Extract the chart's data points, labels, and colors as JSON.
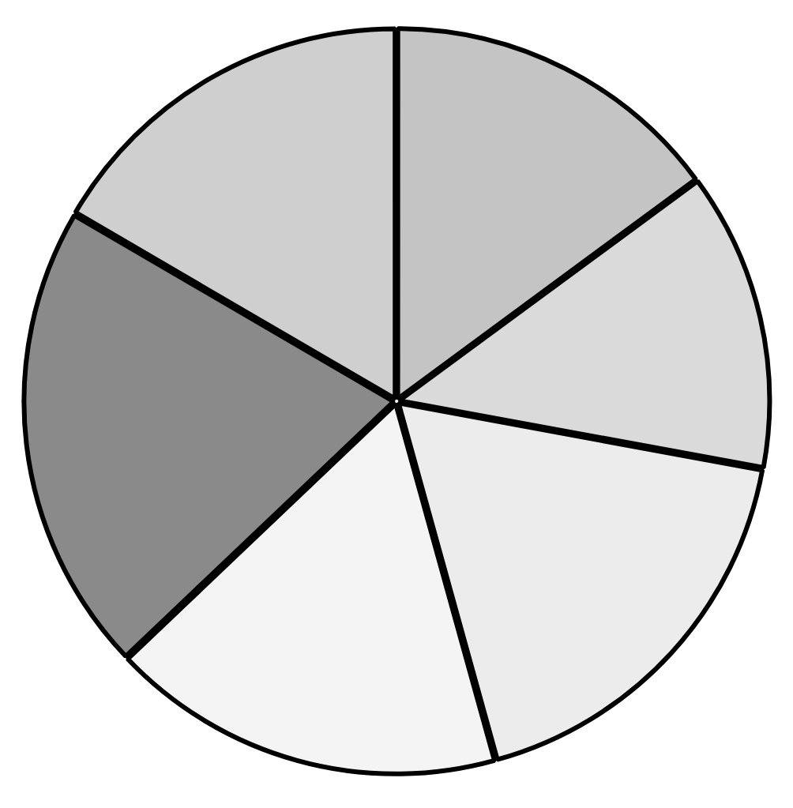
{
  "chart_data": {
    "type": "pie",
    "categories": [
      null,
      null,
      null,
      null,
      null,
      null
    ],
    "values": [
      14.9,
      13.0,
      17.8,
      17.2,
      20.5,
      16.6
    ],
    "colors": [
      "#c4c4c4",
      "#dadada",
      "#ececec",
      "#f4f4f4",
      "#8a8a8a",
      "#cfcfcf"
    ]
  }
}
